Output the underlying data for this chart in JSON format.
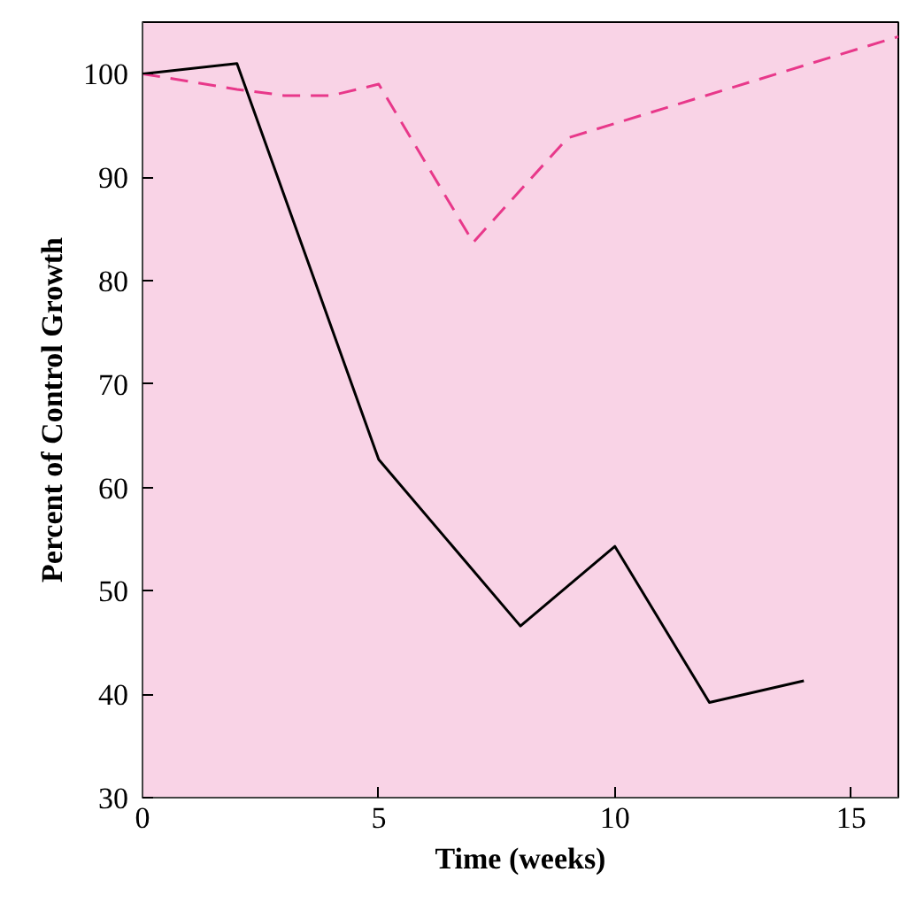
{
  "chart_data": {
    "type": "line",
    "xlabel": "Time (weeks)",
    "ylabel": "Percent of Control Growth",
    "xlim": [
      0,
      16
    ],
    "ylim": [
      30,
      105
    ],
    "xticks": [
      0,
      5,
      10,
      15
    ],
    "yticks": [
      30,
      40,
      50,
      60,
      70,
      80,
      90,
      100
    ],
    "grid": false,
    "marker": "none",
    "series": [
      {
        "color": "#000000",
        "line_style": "solid",
        "x": [
          0,
          2,
          5,
          8,
          10,
          12,
          14
        ],
        "values": [
          100,
          101,
          62.7,
          46.6,
          54.3,
          39.2,
          41.3
        ]
      },
      {
        "color": "#e8388a",
        "line_style": "dashed",
        "x": [
          0,
          2,
          3,
          4,
          5,
          7,
          9,
          16
        ],
        "values": [
          100,
          98.5,
          97.9,
          97.9,
          99,
          83.7,
          93.8,
          103.6
        ]
      }
    ]
  }
}
